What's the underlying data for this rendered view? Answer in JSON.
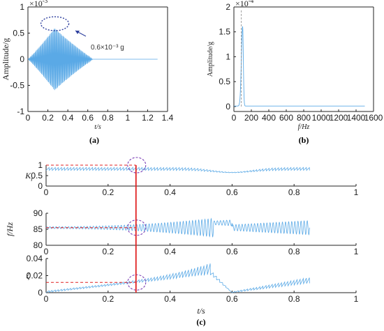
{
  "colors": {
    "series": "#5aa9e6",
    "marker_red": "#e02020",
    "ellipse_purple": "#7b3fb5",
    "ellipse_blue": "#2e3f9e",
    "axis": "#222222"
  },
  "chart_data": [
    {
      "id": "a",
      "type": "line",
      "caption": "(a)",
      "xlabel": "t/s",
      "ylabel": "Amplitude/g",
      "exponent": "×10",
      "exponent_power": "-3",
      "xlim": [
        0,
        1.4
      ],
      "ylim": [
        -1,
        1
      ],
      "xticks": [
        "0",
        "0.2",
        "0.4",
        "0.6",
        "0.8",
        "1",
        "1.2",
        "1.4"
      ],
      "yticks": [
        "-1",
        "-0.5",
        "0",
        "0.5",
        "1"
      ],
      "annotation": "0.6×10⁻³ g",
      "signal": {
        "oscillation_freq_hz": 100,
        "peak_amplitude": 0.6,
        "peak_time": 0.27,
        "end_time": 1.3,
        "decay_end": 0.65
      }
    },
    {
      "id": "b",
      "type": "line",
      "caption": "(b)",
      "xlabel": "f/Hz",
      "ylabel": "Amplitude/g",
      "exponent": "×10",
      "exponent_power": "-4",
      "xlim": [
        0,
        1600
      ],
      "ylim": [
        -0.1,
        2
      ],
      "xticks": [
        "0",
        "200",
        "400",
        "600",
        "800",
        "1000",
        "1200",
        "1400",
        "1600"
      ],
      "yticks": [
        "0",
        "0.5",
        "1",
        "1.5",
        "2"
      ],
      "spectrum": {
        "peak_freq": 100,
        "peak_value": 1.6
      }
    },
    {
      "id": "c1",
      "type": "line",
      "caption": "(c)",
      "ylabel": "K",
      "ylabel_sub": "r",
      "xlim": [
        0,
        1
      ],
      "ylim": [
        0,
        1
      ],
      "xticks": [
        "0",
        "0.2",
        "0.4",
        "0.6",
        "0.8",
        "1"
      ],
      "yticks": [
        "0",
        "0.5",
        "1"
      ],
      "reference_y": 1.0,
      "signal": {
        "base": 0.82,
        "dip_time": 0.6,
        "dip_value": 0.65,
        "end_time": 0.85
      }
    },
    {
      "id": "c2",
      "type": "line",
      "ylabel": "f/Hz",
      "xlim": [
        0,
        1
      ],
      "ylim": [
        80,
        90
      ],
      "xticks": [
        "0",
        "0.2",
        "0.4",
        "0.6",
        "0.8",
        "1"
      ],
      "yticks": [
        "80",
        "85",
        "90"
      ],
      "reference_y": 85.5,
      "signal": {
        "base": 85.5,
        "jump_time": 0.54,
        "end_time": 0.85
      }
    },
    {
      "id": "c3",
      "type": "line",
      "ylabel": "ζ",
      "xlabel": "t/s",
      "xlim": [
        0,
        1
      ],
      "ylim": [
        0,
        0.04
      ],
      "xticks": [
        "0",
        "0.2",
        "0.4",
        "0.6",
        "0.8",
        "1"
      ],
      "yticks": [
        "0",
        "0.02",
        "0.04"
      ],
      "reference_y": 0.012,
      "signal": {
        "peak_time": 0.53,
        "peak_value": 0.037,
        "end_time": 0.85
      }
    }
  ],
  "marker_time": 0.29
}
